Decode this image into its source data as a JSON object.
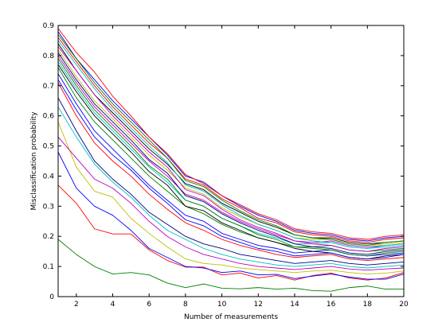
{
  "chart_data": {
    "type": "line",
    "title": "",
    "xlabel": "Number of measurements",
    "ylabel": "Misclassification probability",
    "xlim": [
      1,
      20
    ],
    "ylim": [
      0,
      0.9
    ],
    "xticks": [
      2,
      4,
      6,
      8,
      10,
      12,
      14,
      16,
      18,
      20
    ],
    "yticks": [
      0,
      0.1,
      0.2,
      0.3,
      0.4,
      0.5,
      0.6,
      0.7,
      0.8,
      0.9
    ],
    "grid": false,
    "legend": "none",
    "x": [
      1,
      2,
      3,
      4,
      5,
      6,
      7,
      8,
      9,
      10,
      11,
      12,
      13,
      14,
      15,
      16,
      17,
      18,
      19,
      20
    ],
    "series": [
      {
        "color": "#007f00",
        "values": [
          0.19,
          0.14,
          0.1,
          0.075,
          0.08,
          0.072,
          0.045,
          0.03,
          0.042,
          0.028,
          0.026,
          0.03,
          0.025,
          0.028,
          0.02,
          0.018,
          0.03,
          0.035,
          0.025,
          0.025
        ]
      },
      {
        "color": "#ff0000",
        "values": [
          0.37,
          0.31,
          0.225,
          0.208,
          0.208,
          0.155,
          0.12,
          0.098,
          0.098,
          0.072,
          0.078,
          0.062,
          0.07,
          0.055,
          0.07,
          0.078,
          0.062,
          0.055,
          0.062,
          0.08
        ]
      },
      {
        "color": "#0000ff",
        "values": [
          0.48,
          0.36,
          0.3,
          0.27,
          0.22,
          0.16,
          0.13,
          0.1,
          0.095,
          0.08,
          0.085,
          0.072,
          0.074,
          0.06,
          0.068,
          0.075,
          0.065,
          0.058,
          0.058,
          0.075
        ]
      },
      {
        "color": "#bfbf00",
        "values": [
          0.58,
          0.43,
          0.35,
          0.33,
          0.26,
          0.21,
          0.165,
          0.125,
          0.11,
          0.105,
          0.095,
          0.09,
          0.085,
          0.08,
          0.085,
          0.088,
          0.08,
          0.075,
          0.078,
          0.085
        ]
      },
      {
        "color": "#bf00bf",
        "values": [
          0.53,
          0.46,
          0.39,
          0.36,
          0.31,
          0.25,
          0.2,
          0.165,
          0.14,
          0.125,
          0.11,
          0.1,
          0.095,
          0.09,
          0.095,
          0.1,
          0.092,
          0.088,
          0.092,
          0.095
        ]
      },
      {
        "color": "#00bfbf",
        "values": [
          0.63,
          0.53,
          0.44,
          0.38,
          0.33,
          0.27,
          0.22,
          0.19,
          0.16,
          0.14,
          0.125,
          0.115,
          0.105,
          0.1,
          0.105,
          0.11,
          0.1,
          0.095,
          0.1,
          0.105
        ]
      },
      {
        "color": "#000080",
        "values": [
          0.66,
          0.55,
          0.45,
          0.39,
          0.34,
          0.28,
          0.24,
          0.2,
          0.175,
          0.16,
          0.14,
          0.13,
          0.12,
          0.11,
          0.115,
          0.12,
          0.11,
          0.105,
          0.11,
          0.115
        ]
      },
      {
        "color": "#ff0000",
        "values": [
          0.71,
          0.6,
          0.51,
          0.45,
          0.4,
          0.34,
          0.29,
          0.245,
          0.22,
          0.19,
          0.17,
          0.155,
          0.14,
          0.13,
          0.135,
          0.14,
          0.125,
          0.12,
          0.125,
          0.13
        ]
      },
      {
        "color": "#0000ff",
        "values": [
          0.74,
          0.64,
          0.55,
          0.49,
          0.43,
          0.37,
          0.32,
          0.27,
          0.25,
          0.21,
          0.19,
          0.17,
          0.16,
          0.145,
          0.15,
          0.155,
          0.14,
          0.135,
          0.14,
          0.145
        ]
      },
      {
        "color": "#007f00",
        "values": [
          0.76,
          0.66,
          0.58,
          0.52,
          0.46,
          0.4,
          0.35,
          0.3,
          0.275,
          0.24,
          0.215,
          0.195,
          0.18,
          0.165,
          0.165,
          0.17,
          0.155,
          0.15,
          0.155,
          0.16
        ]
      },
      {
        "color": "#00bfbf",
        "values": [
          0.78,
          0.69,
          0.61,
          0.55,
          0.49,
          0.43,
          0.38,
          0.32,
          0.3,
          0.26,
          0.235,
          0.21,
          0.195,
          0.175,
          0.175,
          0.18,
          0.165,
          0.16,
          0.165,
          0.17
        ]
      },
      {
        "color": "#bf00bf",
        "values": [
          0.8,
          0.71,
          0.63,
          0.57,
          0.51,
          0.45,
          0.4,
          0.34,
          0.32,
          0.28,
          0.25,
          0.225,
          0.205,
          0.185,
          0.18,
          0.185,
          0.17,
          0.165,
          0.17,
          0.175
        ]
      },
      {
        "color": "#bfbf00",
        "values": [
          0.82,
          0.73,
          0.65,
          0.59,
          0.53,
          0.47,
          0.42,
          0.36,
          0.34,
          0.295,
          0.265,
          0.24,
          0.22,
          0.195,
          0.19,
          0.19,
          0.175,
          0.17,
          0.175,
          0.18
        ]
      },
      {
        "color": "#000000",
        "values": [
          0.84,
          0.75,
          0.67,
          0.61,
          0.55,
          0.49,
          0.44,
          0.375,
          0.355,
          0.31,
          0.28,
          0.25,
          0.23,
          0.205,
          0.195,
          0.195,
          0.18,
          0.175,
          0.18,
          0.185
        ]
      },
      {
        "color": "#ff0000",
        "values": [
          0.86,
          0.78,
          0.7,
          0.63,
          0.57,
          0.51,
          0.46,
          0.39,
          0.37,
          0.325,
          0.295,
          0.26,
          0.245,
          0.215,
          0.205,
          0.2,
          0.185,
          0.18,
          0.19,
          0.195
        ]
      },
      {
        "color": "#0000ff",
        "values": [
          0.88,
          0.79,
          0.72,
          0.65,
          0.59,
          0.53,
          0.47,
          0.4,
          0.38,
          0.335,
          0.3,
          0.27,
          0.25,
          0.22,
          0.21,
          0.205,
          0.19,
          0.185,
          0.195,
          0.2
        ]
      },
      {
        "color": "#007f00",
        "values": [
          0.87,
          0.79,
          0.71,
          0.64,
          0.58,
          0.52,
          0.46,
          0.385,
          0.365,
          0.32,
          0.285,
          0.255,
          0.235,
          0.205,
          0.195,
          0.19,
          0.175,
          0.17,
          0.18,
          0.185
        ]
      },
      {
        "color": "#00bfbf",
        "values": [
          0.85,
          0.77,
          0.69,
          0.62,
          0.56,
          0.5,
          0.445,
          0.37,
          0.35,
          0.305,
          0.27,
          0.24,
          0.22,
          0.195,
          0.185,
          0.18,
          0.165,
          0.16,
          0.17,
          0.175
        ]
      },
      {
        "color": "#bf00bf",
        "values": [
          0.83,
          0.75,
          0.67,
          0.6,
          0.54,
          0.48,
          0.43,
          0.355,
          0.335,
          0.29,
          0.255,
          0.23,
          0.21,
          0.185,
          0.175,
          0.17,
          0.155,
          0.15,
          0.16,
          0.165
        ]
      },
      {
        "color": "#000080",
        "values": [
          0.81,
          0.72,
          0.64,
          0.58,
          0.52,
          0.455,
          0.41,
          0.335,
          0.315,
          0.275,
          0.245,
          0.22,
          0.2,
          0.175,
          0.165,
          0.16,
          0.145,
          0.14,
          0.15,
          0.155
        ]
      },
      {
        "color": "#007f00",
        "values": [
          0.79,
          0.7,
          0.62,
          0.56,
          0.5,
          0.435,
          0.39,
          0.32,
          0.3,
          0.26,
          0.235,
          0.205,
          0.19,
          0.165,
          0.16,
          0.155,
          0.14,
          0.135,
          0.145,
          0.15
        ]
      },
      {
        "color": "#000000",
        "values": [
          0.77,
          0.68,
          0.6,
          0.54,
          0.48,
          0.415,
          0.37,
          0.3,
          0.285,
          0.245,
          0.22,
          0.195,
          0.18,
          0.16,
          0.15,
          0.145,
          0.13,
          0.125,
          0.135,
          0.14
        ]
      },
      {
        "color": "#0000ff",
        "values": [
          0.72,
          0.62,
          0.53,
          0.47,
          0.42,
          0.36,
          0.31,
          0.255,
          0.235,
          0.2,
          0.18,
          0.16,
          0.15,
          0.135,
          0.14,
          0.145,
          0.13,
          0.125,
          0.13,
          0.14
        ]
      },
      {
        "color": "#ff0000",
        "values": [
          0.89,
          0.81,
          0.745,
          0.665,
          0.6,
          0.53,
          0.475,
          0.405,
          0.375,
          0.335,
          0.305,
          0.275,
          0.255,
          0.225,
          0.215,
          0.21,
          0.195,
          0.19,
          0.2,
          0.205
        ]
      }
    ]
  }
}
